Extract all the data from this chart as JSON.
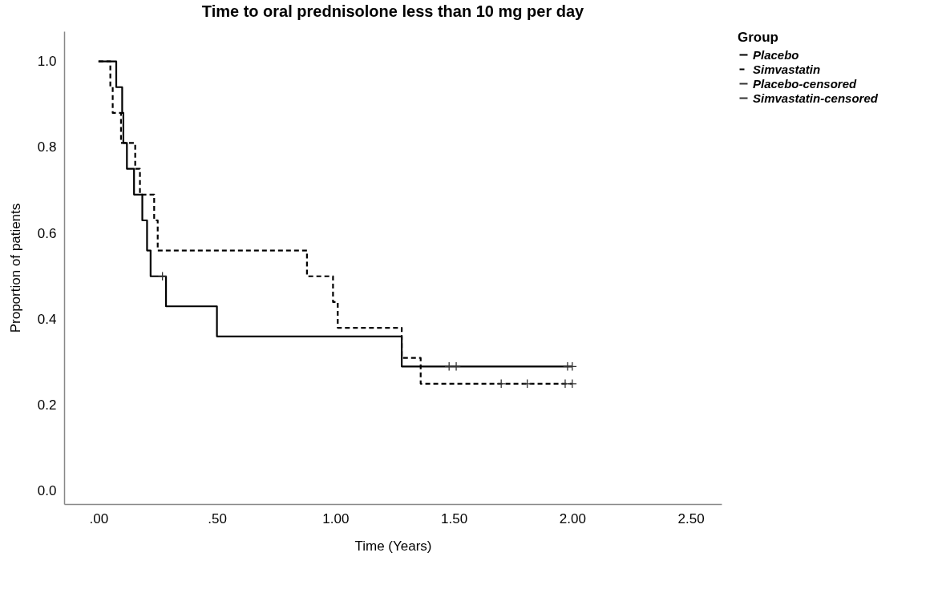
{
  "chart_data": {
    "type": "step",
    "title": "Time to oral prednisolone less than 10 mg per day",
    "xlabel": "Time (Years)",
    "ylabel": "Proportion of patients",
    "legend_title": "Group",
    "legend": "top right",
    "grid": false,
    "xlim": [
      -0.145,
      2.63
    ],
    "ylim": [
      -0.03,
      1.07
    ],
    "xticks": [
      {
        "value": 0,
        "label": ".00"
      },
      {
        "value": 0.5,
        "label": ".50"
      },
      {
        "value": 1,
        "label": "1.00"
      },
      {
        "value": 1.5,
        "label": "1.50"
      },
      {
        "value": 2,
        "label": "2.00"
      },
      {
        "value": 2.5,
        "label": "2.50"
      }
    ],
    "yticks": [
      {
        "value": 0,
        "label": "0.0"
      },
      {
        "value": 0.2,
        "label": "0.2"
      },
      {
        "value": 0.4,
        "label": "0.4"
      },
      {
        "value": 0.6,
        "label": "0.6"
      },
      {
        "value": 0.8,
        "label": "0.8"
      },
      {
        "value": 1,
        "label": "1.0"
      }
    ],
    "series": [
      {
        "name": "Placebo",
        "line_style": "solid",
        "color": "#000000",
        "x": [
          0,
          0.075,
          0.1,
          0.105,
          0.12,
          0.15,
          0.185,
          0.205,
          0.22,
          0.285,
          0.5,
          1.28,
          2.0
        ],
        "values": [
          1,
          0.94,
          0.88,
          0.81,
          0.75,
          0.69,
          0.63,
          0.56,
          0.5,
          0.43,
          0.36,
          0.29,
          0.29
        ]
      },
      {
        "name": "Simvastatin",
        "line_style": "dashed",
        "color": "#000000",
        "x": [
          0,
          0.05,
          0.06,
          0.095,
          0.155,
          0.175,
          0.235,
          0.25,
          0.88,
          0.99,
          1.01,
          1.28,
          1.36,
          2.0
        ],
        "values": [
          1,
          0.94,
          0.88,
          0.81,
          0.75,
          0.69,
          0.63,
          0.56,
          0.5,
          0.44,
          0.38,
          0.31,
          0.25,
          0.25
        ]
      },
      {
        "name": "Placebo-censored",
        "type": "scatter",
        "marker": "cross",
        "color": "#333333",
        "x": [
          0.27,
          1.48,
          1.51,
          1.98,
          2.0
        ],
        "values": [
          0.5,
          0.29,
          0.29,
          0.29,
          0.29
        ]
      },
      {
        "name": "Simvastatin-censored",
        "type": "scatter",
        "marker": "cross",
        "color": "#333333",
        "x": [
          1.7,
          1.81,
          1.97,
          2.0
        ],
        "values": [
          0.25,
          0.25,
          0.25,
          0.25
        ]
      }
    ]
  }
}
